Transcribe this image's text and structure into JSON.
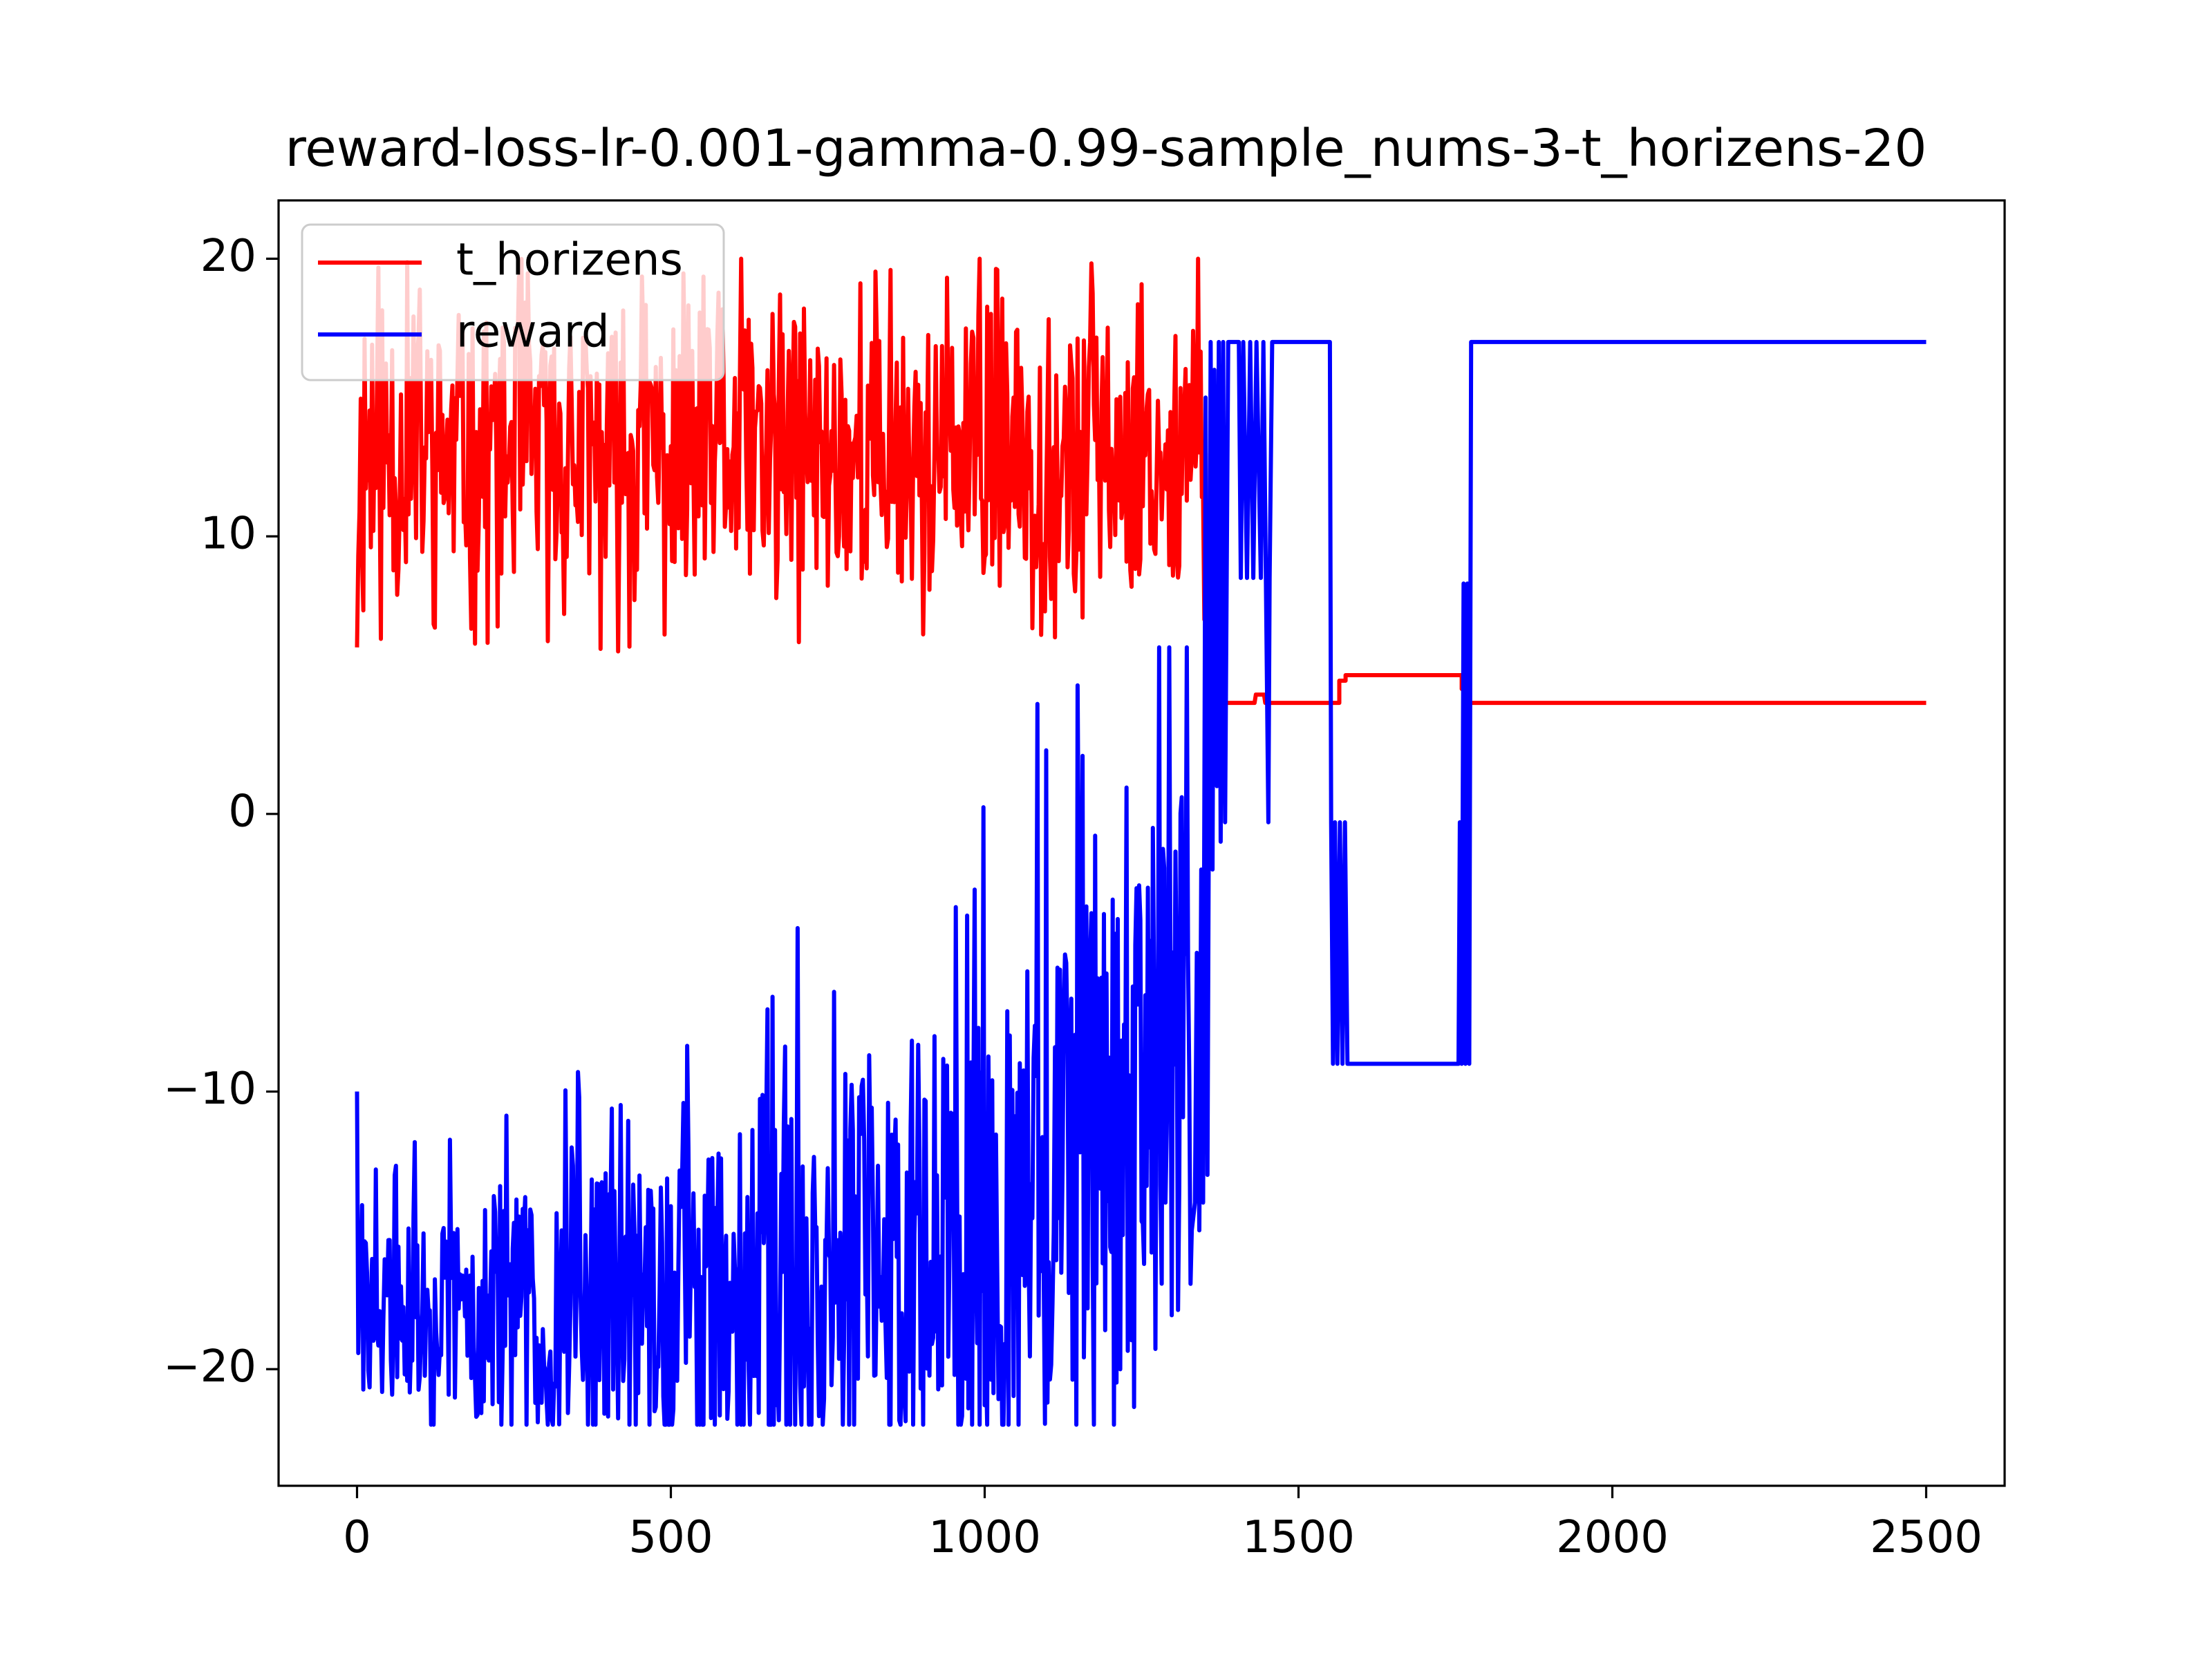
{
  "chart_data": {
    "type": "line",
    "title": "reward-loss-lr-0.001-gamma-0.99-sample_nums-3-t_horizens-20",
    "xlabel": "",
    "ylabel": "",
    "xlim": [
      -125,
      2625
    ],
    "ylim": [
      -24.2,
      22.1
    ],
    "xticks": [
      0,
      500,
      1000,
      1500,
      2000,
      2500
    ],
    "yticks": [
      -20,
      -10,
      0,
      10,
      20
    ],
    "xtick_labels": [
      "0",
      "500",
      "1000",
      "1500",
      "2000",
      "2500"
    ],
    "ytick_labels": [
      "−20",
      "−10",
      "0",
      "10",
      "20"
    ],
    "grid": false,
    "legend": {
      "position": "upper-left",
      "entries": [
        "t_horizens",
        "reward"
      ]
    },
    "series": [
      {
        "name": "t_horizens",
        "color": "#ff0000",
        "noise": {
          "x_start": 0,
          "x_end": 1350,
          "step": 2,
          "y_min": 5.5,
          "y_max": 20,
          "seed": 11,
          "samples": 675
        },
        "points": [
          [
            0,
            6
          ],
          [
            1350,
            7
          ],
          [
            1352,
            13
          ],
          [
            1354,
            6
          ],
          [
            1356,
            11
          ],
          [
            1358,
            5.5
          ],
          [
            1362,
            9
          ],
          [
            1366,
            6
          ],
          [
            1370,
            8
          ],
          [
            1374,
            5
          ],
          [
            1376,
            4.5
          ],
          [
            1380,
            4.5
          ],
          [
            1382,
            4
          ],
          [
            1430,
            4
          ],
          [
            1432,
            4.3
          ],
          [
            1445,
            4.3
          ],
          [
            1447,
            4
          ],
          [
            1565,
            4
          ],
          [
            1565,
            4.8
          ],
          [
            1575,
            4.8
          ],
          [
            1575,
            5
          ],
          [
            1760,
            5
          ],
          [
            1760,
            4.5
          ],
          [
            1770,
            4.5
          ],
          [
            1770,
            4
          ],
          [
            2500,
            4
          ]
        ]
      },
      {
        "name": "reward",
        "color": "#0000ff",
        "noise": {
          "x_start": 0,
          "x_end": 1330,
          "step": 2,
          "y_min": -22,
          "y_max": 6,
          "seed": 29,
          "samples": 665
        },
        "points": [
          [
            0,
            -10
          ],
          [
            1330,
            -15
          ],
          [
            1335,
            -14
          ],
          [
            1338,
            -5
          ],
          [
            1342,
            -15
          ],
          [
            1345,
            -2
          ],
          [
            1348,
            -14
          ],
          [
            1352,
            15
          ],
          [
            1355,
            -13
          ],
          [
            1360,
            17
          ],
          [
            1363,
            -2
          ],
          [
            1366,
            16
          ],
          [
            1370,
            1
          ],
          [
            1373,
            17
          ],
          [
            1376,
            -1
          ],
          [
            1380,
            17
          ],
          [
            1383,
            -0.3
          ],
          [
            1388,
            17
          ],
          [
            1405,
            17
          ],
          [
            1408,
            8.5
          ],
          [
            1412,
            17
          ],
          [
            1418,
            8.5
          ],
          [
            1423,
            17
          ],
          [
            1428,
            8.5
          ],
          [
            1433,
            17
          ],
          [
            1440,
            8.5
          ],
          [
            1444,
            17
          ],
          [
            1448,
            8.5
          ],
          [
            1452,
            -0.3
          ],
          [
            1454,
            8.5
          ],
          [
            1458,
            17
          ],
          [
            1550,
            17
          ],
          [
            1552,
            -0.3
          ],
          [
            1555,
            -9
          ],
          [
            1558,
            -0.3
          ],
          [
            1562,
            -9
          ],
          [
            1566,
            -0.3
          ],
          [
            1570,
            -9
          ],
          [
            1574,
            -0.3
          ],
          [
            1578,
            -9
          ],
          [
            1755,
            -9
          ],
          [
            1757,
            -0.3
          ],
          [
            1760,
            -9
          ],
          [
            1763,
            8.3
          ],
          [
            1766,
            -9
          ],
          [
            1769,
            8.3
          ],
          [
            1772,
            -9
          ],
          [
            1775,
            17
          ],
          [
            2500,
            17
          ]
        ]
      }
    ]
  }
}
